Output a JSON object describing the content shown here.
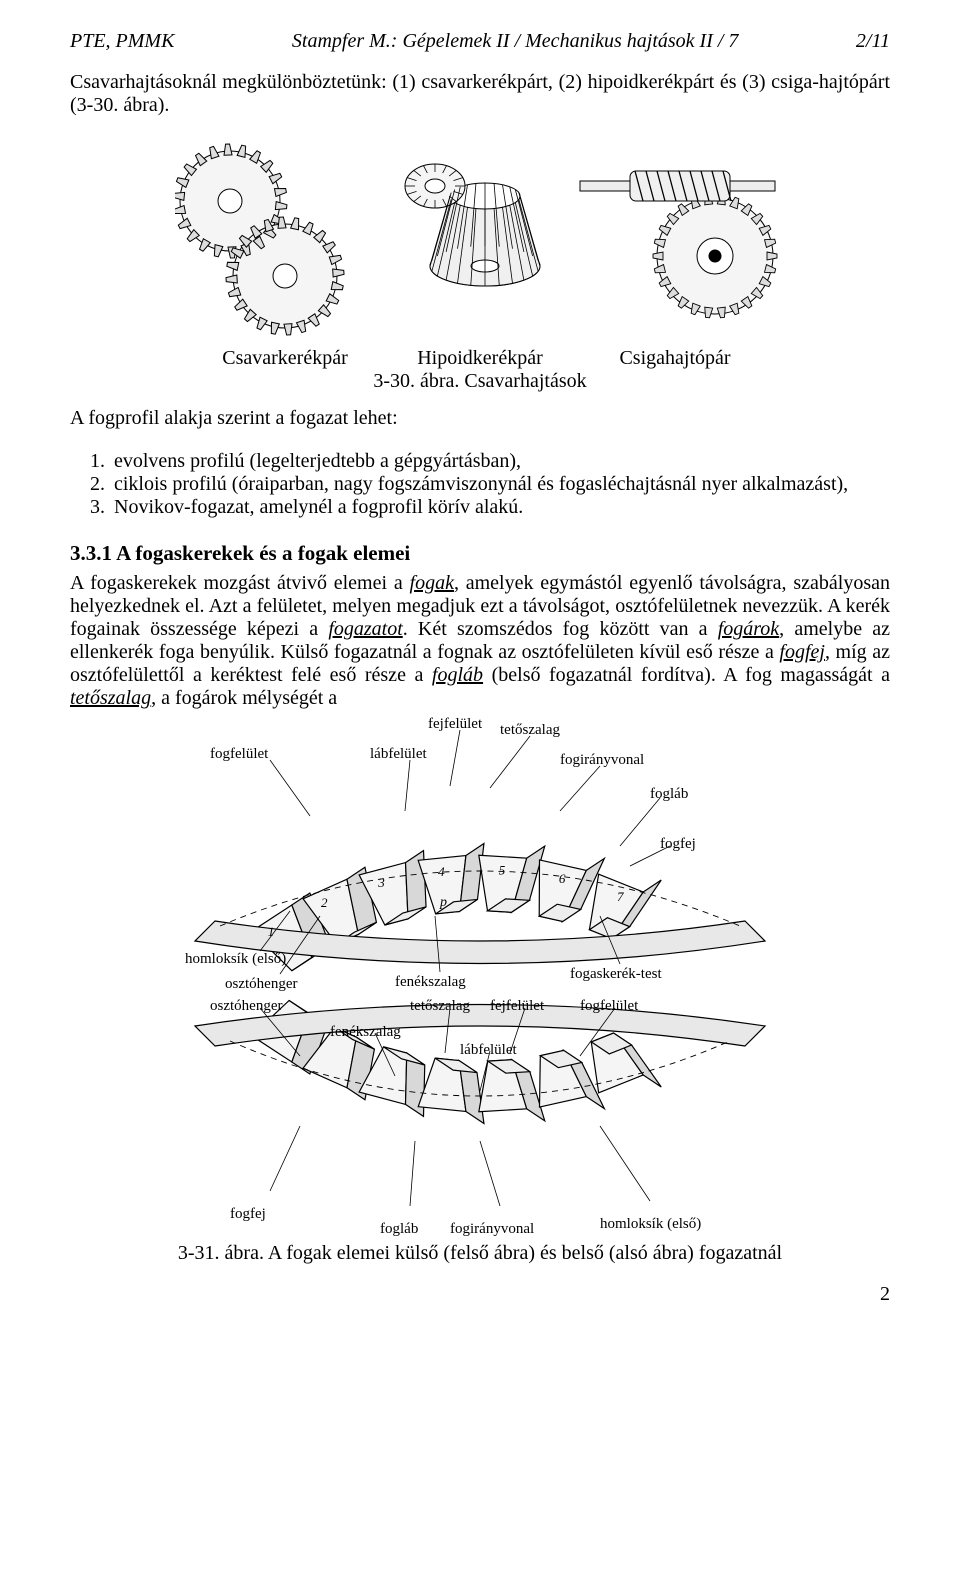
{
  "header": {
    "left": "PTE, PMMK",
    "center": "Stampfer M.: Gépelemek II / Mechanikus hajtások II / 7",
    "right": "2/11"
  },
  "intro_paragraph": "Csavarhajtásoknál megkülönböztetünk: (1) csavarkerékpárt, (2) hipoidkerékpárt és (3) csiga-hajtópárt (3-30. ábra).",
  "fig1": {
    "labels": {
      "a": "Csavarkerékpár",
      "b": "Hipoidkerékpár",
      "c": "Csigahajtópár"
    },
    "spacing": {
      "a_width": 180,
      "b_width": 170,
      "c_width": 170
    },
    "caption": "3-30. ábra. Csavarhajtások",
    "stroke": "#000000",
    "fill_light": "#ffffff",
    "fill_hatch": "#6b6b6b"
  },
  "list_intro": "A fogprofil alakja szerint a fogazat lehet:",
  "list_items": [
    "evolvens profilú (legelterjedtebb a gépgyártásban),",
    "ciklois profilú (óraiparban, nagy fogszámviszonynál és fogasléchajtásnál nyer alkalmazást),",
    "Novikov-fogazat, amelynél a fogprofil körív alakú."
  ],
  "section_heading": "3.3.1 A fogaskerekek és a fogak elemei",
  "section_paragraph_parts": [
    {
      "t": "A fogaskerekek mozgást átvivő elemei a "
    },
    {
      "t": "fogak",
      "cls": "u it"
    },
    {
      "t": ", amelyek egymástól egyenlő távolságra, szabályosan helyezkednek el. Azt a felületet, melyen megadjuk ezt a távolságot, osztófelületnek nevezzük. A kerék fogainak összessége képezi a "
    },
    {
      "t": "fogazatot",
      "cls": "u it"
    },
    {
      "t": ". Két szomszédos fog között van a "
    },
    {
      "t": "fogárok",
      "cls": "u it"
    },
    {
      "t": ", amelybe az ellenkerék foga benyúlik. Külső fogazatnál a fognak az osztófelületen kívül eső része a "
    },
    {
      "t": "fogfej",
      "cls": "u it"
    },
    {
      "t": ", míg az osztófelülettől a keréktest felé eső része a "
    },
    {
      "t": "fogláb",
      "cls": "u it"
    },
    {
      "t": " (belső fogazatnál fordítva). A fog magasságát a "
    },
    {
      "t": "tetőszalag",
      "cls": "u it"
    },
    {
      "t": ", a fogárok mélységét a"
    }
  ],
  "fig2": {
    "labels_top": {
      "fejfelulet": "fejfelület",
      "tetoszalag": "tetőszalag",
      "fogfelulet": "fogfelület",
      "labfelulet": "lábfelület",
      "fogiranyvonal": "fogirányvonal",
      "foglab": "fogláb",
      "fogfej": "fogfej",
      "homloksik": "homloksík (első)",
      "osztohenger": "osztóhenger",
      "fenekszalag": "fenékszalag",
      "fogaskerek_test": "fogaskerék-test"
    },
    "labels_bottom": {
      "osztohenger": "osztóhenger",
      "tetoszalag": "tetőszalag",
      "fejfelulet": "fejfelület",
      "fogfelulet": "fogfelület",
      "fenekszalag": "fenékszalag",
      "labfelulet": "lábfelület",
      "fogfej": "fogfej",
      "foglab": "fogláb",
      "fogiranyvonal": "fogirányvonal",
      "homloksik": "homloksík (első)"
    },
    "nums": [
      "1",
      "2",
      "3",
      "4",
      "5",
      "6",
      "7"
    ],
    "p_label": "p",
    "stroke": "#000000",
    "caption": "3-31. ábra. A fogak elemei külső (felső ábra) és belső (alsó ábra) fogazatnál"
  },
  "page_number": "2"
}
